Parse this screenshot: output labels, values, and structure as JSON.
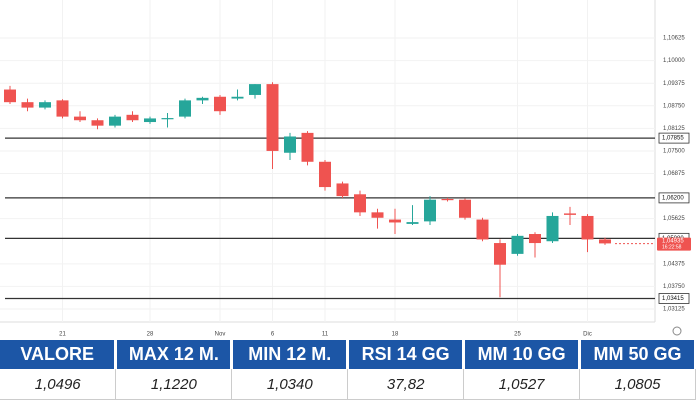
{
  "chart_data": {
    "type": "candlestick",
    "categories": [
      null,
      null,
      null,
      "21",
      null,
      null,
      null,
      null,
      "28",
      null,
      null,
      null,
      "Nov",
      null,
      null,
      "6",
      null,
      null,
      "11",
      null,
      null,
      null,
      "18",
      null,
      null,
      null,
      null,
      null,
      null,
      "25",
      null,
      null,
      null,
      "Dic",
      null
    ],
    "open": [
      1.092,
      1.0885,
      1.087,
      1.089,
      1.0845,
      1.0835,
      1.082,
      1.085,
      1.083,
      1.084,
      1.0845,
      1.089,
      1.09,
      1.0895,
      1.0905,
      1.0935,
      1.0745,
      1.08,
      1.072,
      1.066,
      1.063,
      1.058,
      1.056,
      1.0548,
      1.0555,
      1.0617,
      1.0615,
      1.056,
      1.0495,
      1.0465,
      1.052,
      1.05,
      1.0577,
      1.057,
      1.0505
    ],
    "high": [
      1.093,
      1.0895,
      1.089,
      1.0893,
      1.086,
      1.084,
      1.085,
      1.086,
      1.0845,
      1.0855,
      1.0895,
      1.09,
      1.0905,
      1.092,
      1.0935,
      1.094,
      1.08,
      1.0805,
      1.0725,
      1.0665,
      1.064,
      1.059,
      1.059,
      1.06,
      1.0625,
      1.062,
      1.0618,
      1.0565,
      1.0505,
      1.052,
      1.0525,
      1.058,
      1.0595,
      1.0575,
      1.051
    ],
    "low": [
      1.088,
      1.086,
      1.0865,
      1.084,
      1.083,
      1.081,
      1.0815,
      1.083,
      1.0825,
      1.0815,
      1.084,
      1.088,
      1.085,
      1.089,
      1.0895,
      1.07,
      1.0725,
      1.071,
      1.064,
      1.062,
      1.057,
      1.0535,
      1.052,
      1.0545,
      1.0545,
      1.061,
      1.056,
      1.05,
      1.0345,
      1.046,
      1.0455,
      1.0495,
      1.0545,
      1.047,
      1.049
    ],
    "close": [
      1.0885,
      1.087,
      1.0885,
      1.0845,
      1.0835,
      1.082,
      1.0845,
      1.0835,
      1.084,
      1.0841,
      1.089,
      1.0897,
      1.086,
      1.09,
      1.0935,
      1.075,
      1.079,
      1.072,
      1.065,
      1.0625,
      1.058,
      1.0565,
      1.0552,
      1.0553,
      1.0615,
      1.0615,
      1.0565,
      1.0505,
      1.0435,
      1.0515,
      1.0495,
      1.057,
      1.0573,
      1.0505,
      1.0494
    ],
    "up_color": "#26a69a",
    "down_color": "#ef5350",
    "ylim": [
      1.02875,
      1.11125
    ],
    "yticks": [
      {
        "value": 1.10625,
        "label": "1,10625"
      },
      {
        "value": 1.1,
        "label": "1,10000"
      },
      {
        "value": 1.09375,
        "label": "1,09375"
      },
      {
        "value": 1.0875,
        "label": "1,08750"
      },
      {
        "value": 1.08125,
        "label": "1,08125"
      },
      {
        "value": 1.075,
        "label": "1,07500"
      },
      {
        "value": 1.06875,
        "label": "1,06875"
      },
      {
        "value": 1.05625,
        "label": "1,05625"
      },
      {
        "value": 1.04375,
        "label": "1,04375"
      },
      {
        "value": 1.0375,
        "label": "1,03750"
      },
      {
        "value": 1.03125,
        "label": "1,03125"
      }
    ],
    "levels": [
      {
        "value": 1.07855,
        "label": "1,07855"
      },
      {
        "value": 1.062,
        "label": "1,06200"
      },
      {
        "value": 1.0508,
        "label": "1,05080"
      },
      {
        "value": 1.03415,
        "label": "1,03415"
      }
    ],
    "last_price": {
      "value": 1.04935,
      "label": "1,04935"
    },
    "last_time": "16:22:58",
    "grid": true
  },
  "table": {
    "headers": [
      "VALORE",
      "MAX 12 M.",
      "MIN 12 M.",
      "RSI 14 GG",
      "MM 10 GG",
      "MM 50 GG"
    ],
    "rows": [
      [
        "1,0496",
        "1,1220",
        "1,0340",
        "37,82",
        "1,0527",
        "1,0805"
      ]
    ]
  }
}
